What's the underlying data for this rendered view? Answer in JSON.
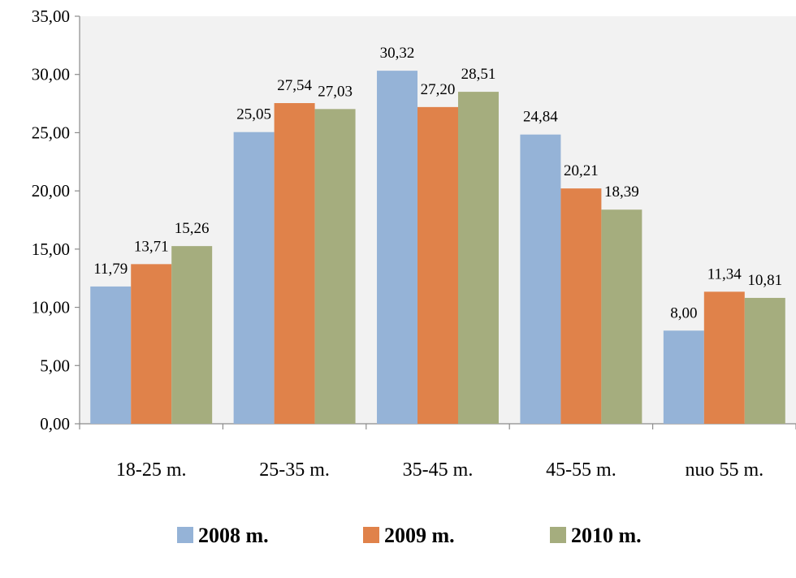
{
  "chart_data": {
    "type": "bar",
    "categories": [
      "18-25 m.",
      "25-35 m.",
      "35-45 m.",
      "45-55 m.",
      "nuo 55 m."
    ],
    "series": [
      {
        "name": "2008 m.",
        "values": [
          11.79,
          25.05,
          30.32,
          24.84,
          8.0
        ],
        "labels": [
          "11,79",
          "25,05",
          "30,32",
          "24,84",
          "8,00"
        ],
        "color": "#95B3D7"
      },
      {
        "name": "2009 m.",
        "values": [
          13.71,
          27.54,
          27.2,
          20.21,
          11.34
        ],
        "labels": [
          "13,71",
          "27,54",
          "27,20",
          "20,21",
          "11,34"
        ],
        "color": "#E0824A"
      },
      {
        "name": "2010 m.",
        "values": [
          15.26,
          27.03,
          28.51,
          18.39,
          10.81
        ],
        "labels": [
          "15,26",
          "27,03",
          "28,51",
          "18,39",
          "10,81"
        ],
        "color": "#A5AD7E"
      }
    ],
    "y_ticks": [
      0,
      5,
      10,
      15,
      20,
      25,
      30,
      35
    ],
    "y_tick_labels": [
      "0,00",
      "5,00",
      "10,00",
      "15,00",
      "20,00",
      "25,00",
      "30,00",
      "35,00"
    ],
    "ylim": [
      0,
      35
    ],
    "plot_background": "#F2F2F2",
    "legend_position": "bottom",
    "grid": false
  }
}
